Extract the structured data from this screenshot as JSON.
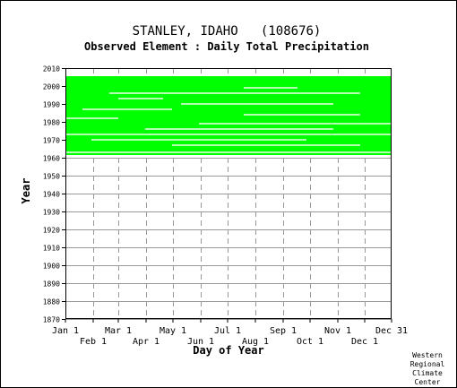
{
  "chart_data": {
    "type": "scatter",
    "title": "STANLEY, IDAHO   (108676)",
    "subtitle": "Observed Element : Daily Total Precipitation",
    "xlabel": "Day of Year",
    "ylabel": "Year",
    "xlim": [
      1,
      365
    ],
    "ylim": [
      1870,
      2010
    ],
    "x_ticks_top": [
      {
        "label": "Jan 1",
        "day": 1
      },
      {
        "label": "Mar 1",
        "day": 60
      },
      {
        "label": "May 1",
        "day": 121
      },
      {
        "label": "Jul 1",
        "day": 182
      },
      {
        "label": "Sep 1",
        "day": 244
      },
      {
        "label": "Nov 1",
        "day": 305
      },
      {
        "label": "Dec 31",
        "day": 365
      }
    ],
    "x_ticks_bottom": [
      {
        "label": "Feb 1",
        "day": 32
      },
      {
        "label": "Apr 1",
        "day": 91
      },
      {
        "label": "Jun 1",
        "day": 152
      },
      {
        "label": "Aug 1",
        "day": 213
      },
      {
        "label": "Oct 1",
        "day": 274
      },
      {
        "label": "Dec 1",
        "day": 335
      }
    ],
    "y_ticks": [
      1870,
      1880,
      1890,
      1900,
      1910,
      1920,
      1930,
      1940,
      1950,
      1960,
      1970,
      1980,
      1990,
      2000,
      2010
    ],
    "grid": true,
    "series": [
      {
        "color": "#00ff00",
        "year_range": [
          1962,
          2005
        ],
        "gaps": [
          {
            "year": 1963,
            "day_start": 1,
            "day_end": 365
          },
          {
            "year": 1967,
            "day_start": 120,
            "day_end": 330
          },
          {
            "year": 1970,
            "day_start": 30,
            "day_end": 270
          },
          {
            "year": 1973,
            "day_start": 1,
            "day_end": 365
          },
          {
            "year": 1976,
            "day_start": 90,
            "day_end": 300
          },
          {
            "year": 1979,
            "day_start": 150,
            "day_end": 365
          },
          {
            "year": 1982,
            "day_start": 1,
            "day_end": 60
          },
          {
            "year": 1984,
            "day_start": 200,
            "day_end": 330
          },
          {
            "year": 1987,
            "day_start": 20,
            "day_end": 120
          },
          {
            "year": 1990,
            "day_start": 130,
            "day_end": 300
          },
          {
            "year": 1993,
            "day_start": 60,
            "day_end": 110
          },
          {
            "year": 1996,
            "day_start": 50,
            "day_end": 330
          },
          {
            "year": 1999,
            "day_start": 200,
            "day_end": 260
          }
        ]
      }
    ]
  },
  "credit": [
    "Western",
    "Regional",
    "Climate",
    "Center"
  ],
  "colors": {
    "data": "#00ff00",
    "grid": "#999999",
    "background": "#ffffff",
    "text": "#000000"
  }
}
